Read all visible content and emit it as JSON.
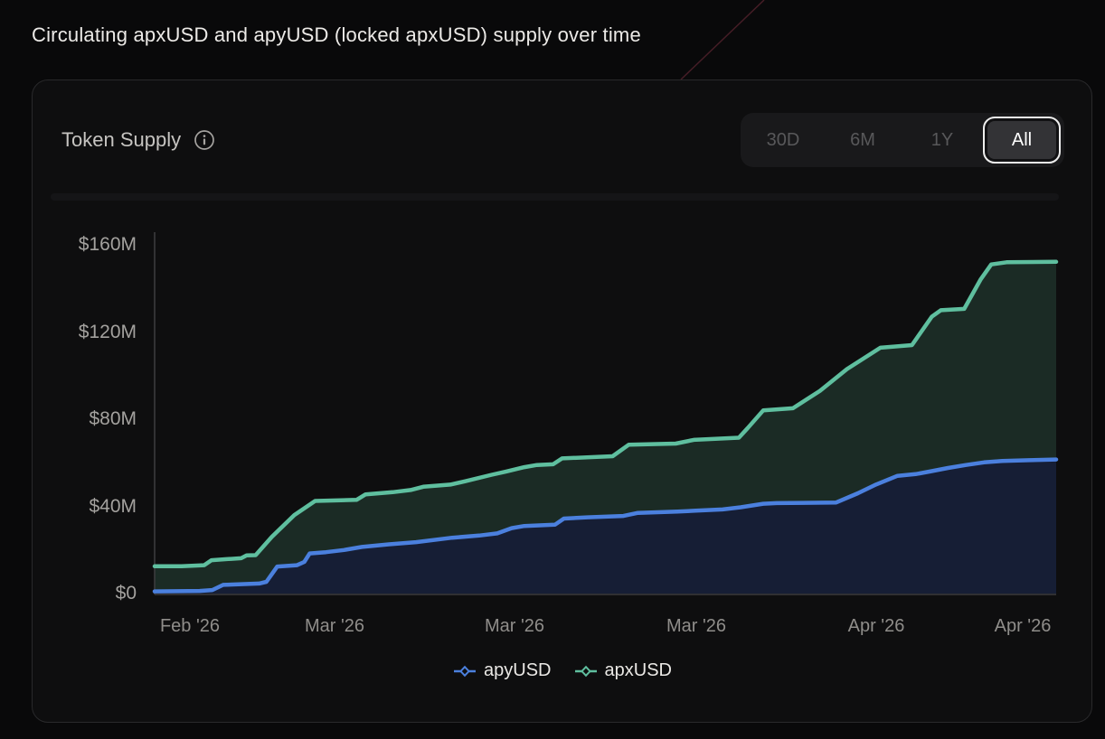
{
  "page": {
    "title": "Circulating apxUSD and apyUSD (locked apxUSD) supply over time"
  },
  "card": {
    "title": "Token Supply",
    "info_icon": "info-circle-icon",
    "range_buttons": [
      {
        "label": "30D",
        "active": false
      },
      {
        "label": "6M",
        "active": false
      },
      {
        "label": "1Y",
        "active": false
      },
      {
        "label": "All",
        "active": true
      }
    ]
  },
  "colors": {
    "apyusd_line": "#4b80de",
    "apyusd_fill": "#161e35",
    "apxusd_line": "#5fbf9f",
    "apxusd_fill": "#1b2b25",
    "axis": "#3c3c3e",
    "accent_streak": "#5a2430"
  },
  "chart_data": {
    "type": "area",
    "title": "Token Supply",
    "xlabel": "",
    "ylabel": "",
    "ylim": [
      0,
      160
    ],
    "grid": false,
    "legend_position": "bottom",
    "yticks": [
      {
        "value": 160,
        "label": "$160M"
      },
      {
        "value": 120,
        "label": "$120M"
      },
      {
        "value": 80,
        "label": "$80M"
      },
      {
        "value": 40,
        "label": "$40M"
      },
      {
        "value": 0,
        "label": "$0"
      }
    ],
    "xticks": [
      {
        "pos": 0.039,
        "label": "Feb '26"
      },
      {
        "pos": 0.2,
        "label": "Mar '26"
      },
      {
        "pos": 0.399,
        "label": "Mar '26"
      },
      {
        "pos": 0.601,
        "label": "Mar '26"
      },
      {
        "pos": 0.8,
        "label": "Apr '26"
      },
      {
        "pos": 0.963,
        "label": "Apr '26"
      }
    ],
    "x_unit": "percent_of_range",
    "y_unit": "USD millions",
    "series": [
      {
        "name": "apyUSD",
        "color": "#4b80de",
        "fill": "#161e35",
        "points": [
          [
            0,
            1
          ],
          [
            5,
            1.2
          ],
          [
            6.4,
            1.6
          ],
          [
            7.6,
            4
          ],
          [
            11.6,
            4.6
          ],
          [
            12.4,
            5.4
          ],
          [
            13.6,
            12.4
          ],
          [
            15.8,
            13
          ],
          [
            16.6,
            14.5
          ],
          [
            17.2,
            18.4
          ],
          [
            19,
            19
          ],
          [
            21,
            20
          ],
          [
            23,
            21.4
          ],
          [
            26,
            22.6
          ],
          [
            29,
            23.6
          ],
          [
            33,
            25.6
          ],
          [
            36,
            26.6
          ],
          [
            38,
            27.6
          ],
          [
            39.6,
            30
          ],
          [
            41,
            31
          ],
          [
            44.4,
            31.6
          ],
          [
            45.4,
            34.4
          ],
          [
            48,
            35
          ],
          [
            52,
            35.6
          ],
          [
            53.6,
            37
          ],
          [
            58,
            37.6
          ],
          [
            60,
            38
          ],
          [
            63,
            38.6
          ],
          [
            65,
            39.6
          ],
          [
            67.5,
            41.2
          ],
          [
            69,
            41.5
          ],
          [
            75.6,
            41.8
          ],
          [
            78,
            46
          ],
          [
            80,
            50
          ],
          [
            82.4,
            54
          ],
          [
            84.4,
            54.8
          ],
          [
            86,
            56
          ],
          [
            88,
            57.6
          ],
          [
            90,
            59
          ],
          [
            92,
            60.2
          ],
          [
            94,
            60.8
          ],
          [
            97,
            61.2
          ],
          [
            100,
            61.5
          ]
        ]
      },
      {
        "name": "apxUSD",
        "color": "#5fbf9f",
        "fill": "#1b2b25",
        "points": [
          [
            0,
            12.5
          ],
          [
            3,
            12.5
          ],
          [
            5.5,
            13
          ],
          [
            6.3,
            15.3
          ],
          [
            8,
            15.8
          ],
          [
            9.6,
            16.2
          ],
          [
            10.2,
            17.5
          ],
          [
            11.2,
            17.6
          ],
          [
            13,
            26
          ],
          [
            15.5,
            36
          ],
          [
            17.8,
            42.5
          ],
          [
            22.4,
            43
          ],
          [
            23.4,
            45.5
          ],
          [
            26.4,
            46.5
          ],
          [
            28.4,
            47.5
          ],
          [
            29.8,
            49
          ],
          [
            32.8,
            50
          ],
          [
            34.4,
            51.5
          ],
          [
            37.4,
            54.5
          ],
          [
            39,
            56
          ],
          [
            41,
            58
          ],
          [
            42.4,
            59
          ],
          [
            44.2,
            59.3
          ],
          [
            45.2,
            62
          ],
          [
            50.8,
            63
          ],
          [
            52.6,
            68.3
          ],
          [
            57.8,
            68.8
          ],
          [
            59.8,
            70.5
          ],
          [
            64.8,
            71.5
          ],
          [
            65.8,
            76
          ],
          [
            67.5,
            84
          ],
          [
            70.8,
            85
          ],
          [
            73.8,
            93
          ],
          [
            76.8,
            103
          ],
          [
            80.5,
            112.8
          ],
          [
            84,
            114
          ],
          [
            86.2,
            127
          ],
          [
            87.2,
            130
          ],
          [
            89.8,
            130.6
          ],
          [
            91.6,
            144
          ],
          [
            92.8,
            151
          ],
          [
            94.5,
            152
          ],
          [
            100,
            152.2
          ]
        ]
      }
    ]
  }
}
